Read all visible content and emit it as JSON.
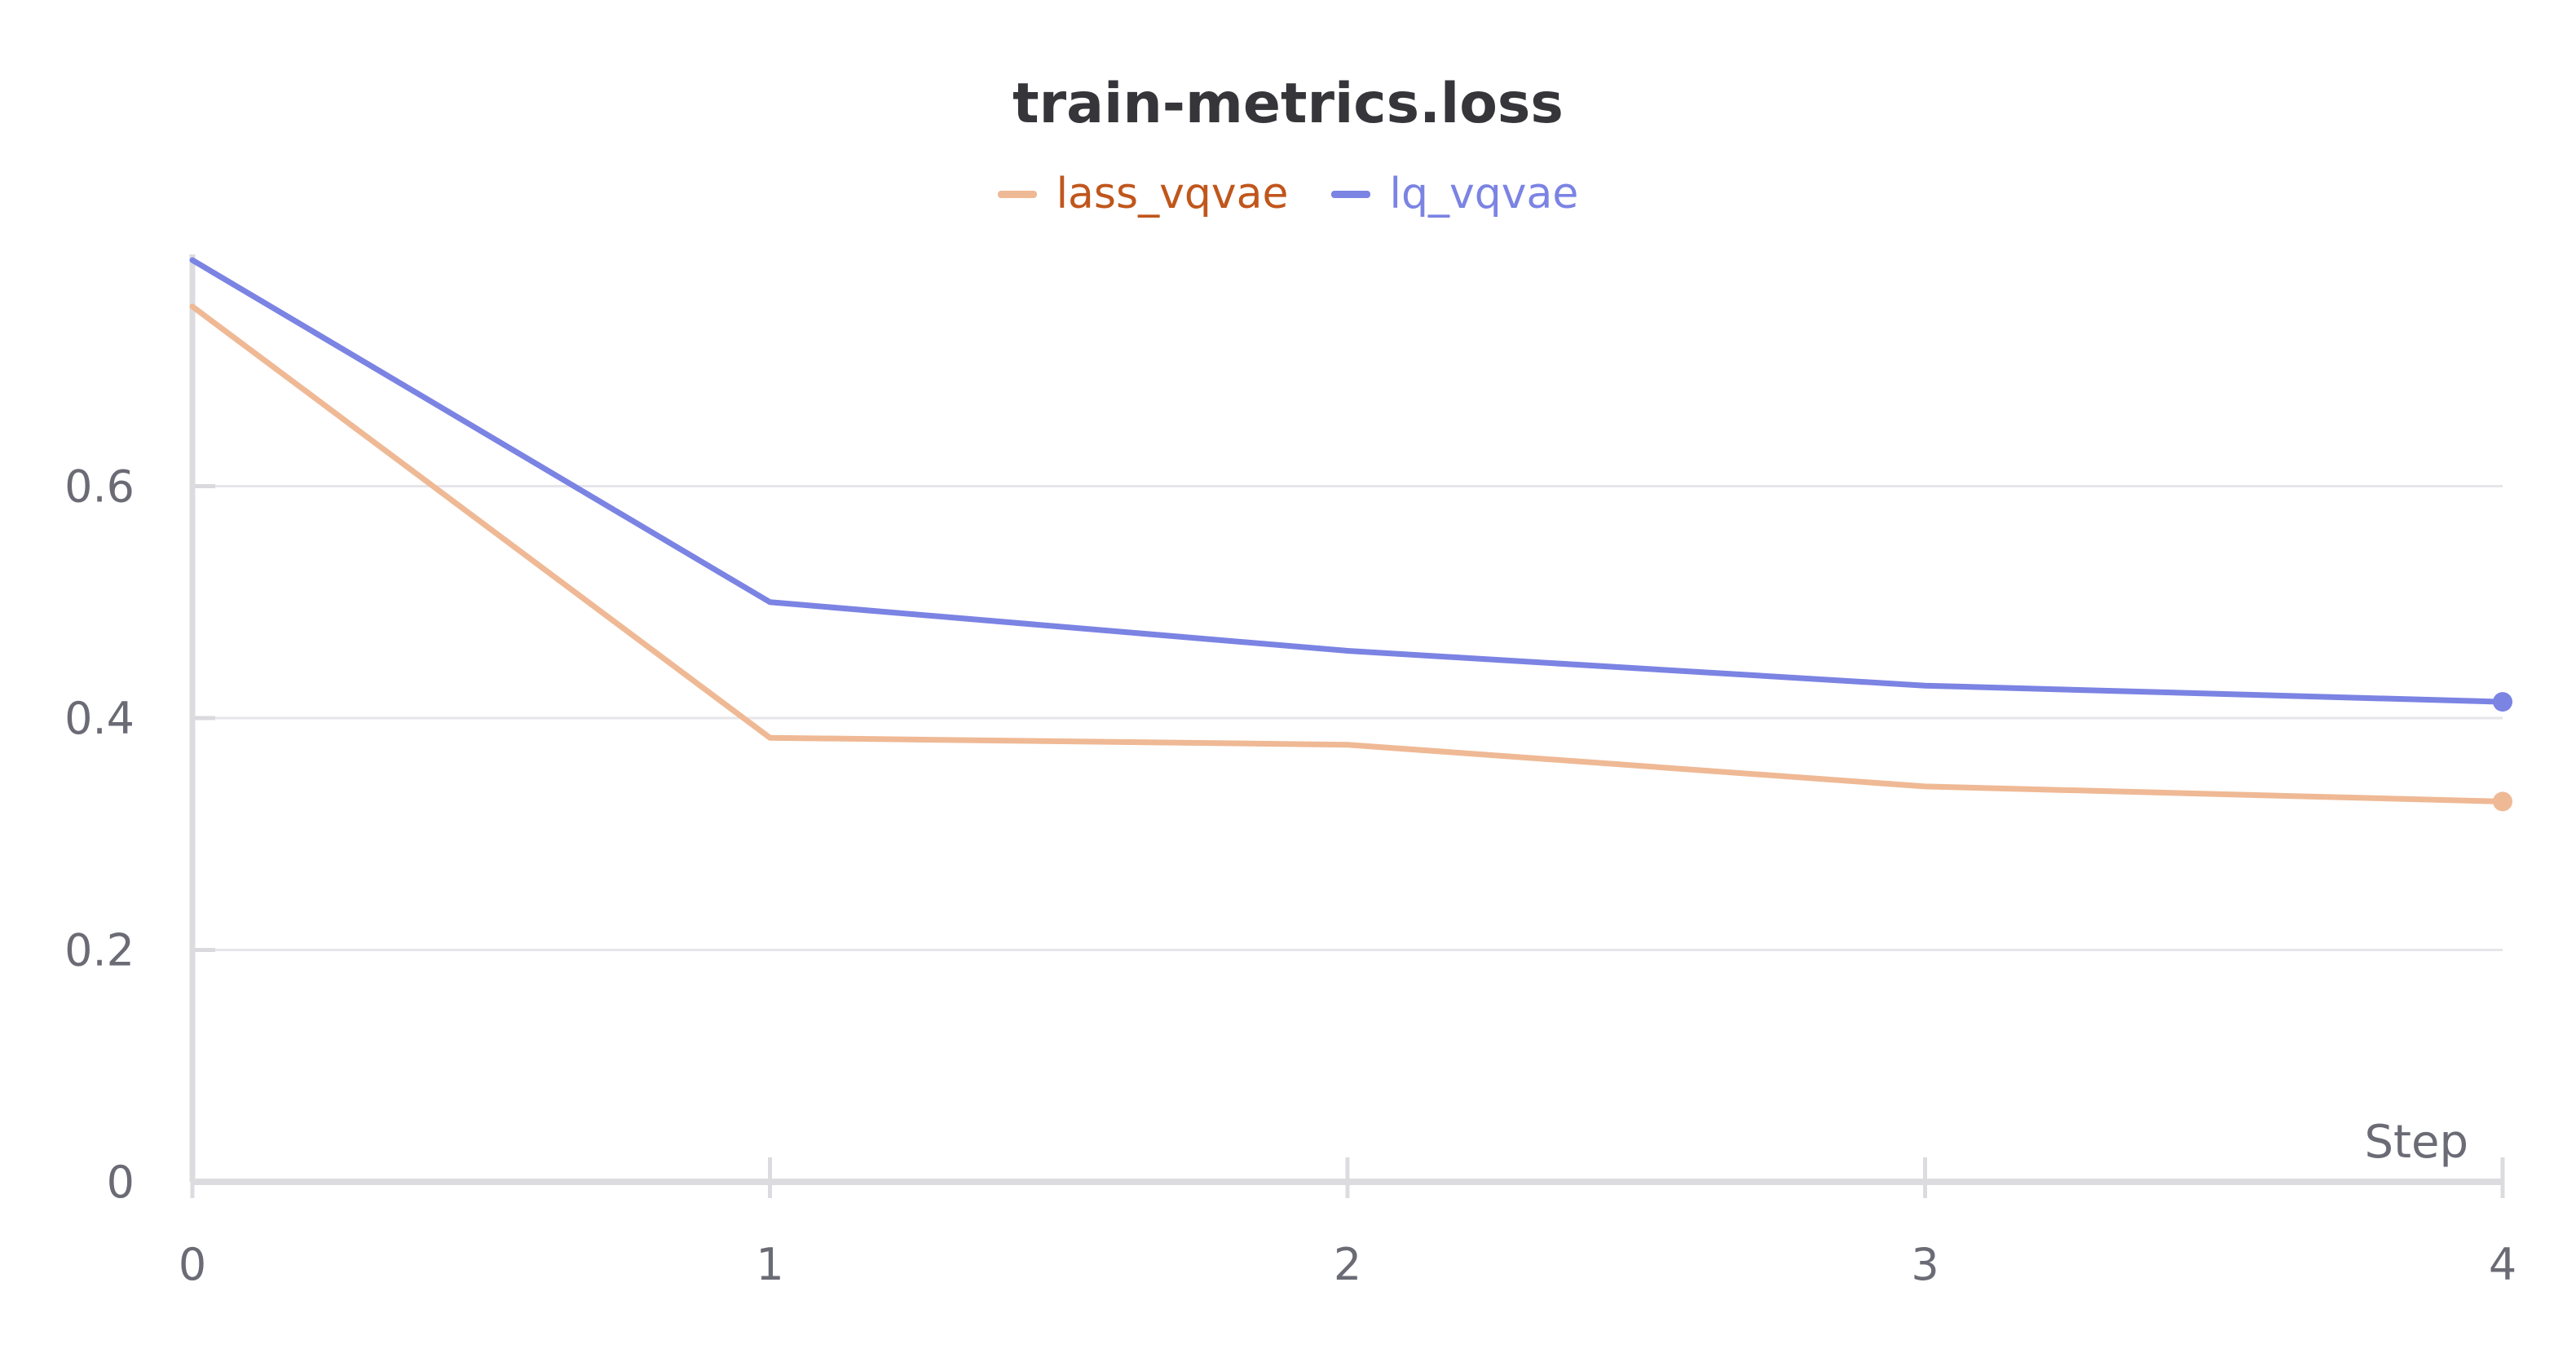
{
  "chart_data": {
    "type": "line",
    "title": "train-metrics.loss",
    "xlabel": "Step",
    "ylabel": "",
    "x": [
      0,
      1,
      2,
      3,
      4
    ],
    "x_ticks": [
      0,
      1,
      2,
      3,
      4
    ],
    "y_ticks": [
      0,
      0.2,
      0.4,
      0.6
    ],
    "xlim": [
      0,
      4
    ],
    "ylim": [
      0,
      0.8
    ],
    "grid": true,
    "legend_position": "top-center",
    "series": [
      {
        "name": "lass_vqvae",
        "color": "#efb995",
        "label_color": "#c0561c",
        "values": [
          0.755,
          0.383,
          0.377,
          0.341,
          0.328
        ]
      },
      {
        "name": "lq_vqvae",
        "color": "#7b83e3",
        "label_color": "#7b83e3",
        "values": [
          0.795,
          0.5,
          0.458,
          0.428,
          0.414
        ]
      }
    ]
  }
}
